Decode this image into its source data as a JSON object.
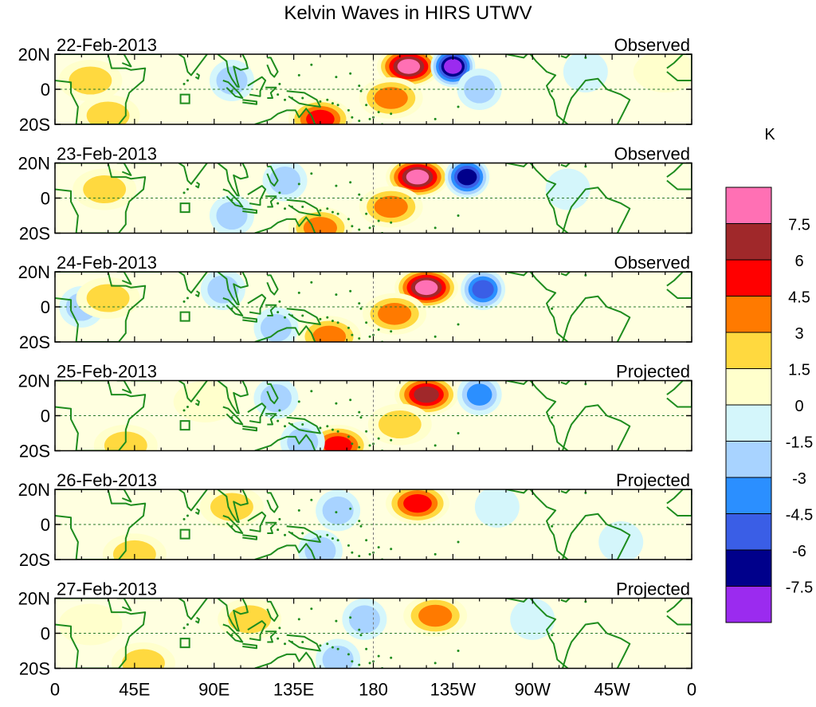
{
  "chart_data": {
    "type": "heatmap",
    "title": "Kelvin Waves in HIRS UTWV",
    "x_tick_labels": [
      "0",
      "45E",
      "90E",
      "135E",
      "180",
      "135W",
      "90W",
      "45W",
      "0"
    ],
    "y_tick_labels": [
      "20N",
      "0",
      "20S"
    ],
    "grid": false,
    "legend_placement": "right",
    "colorbar": {
      "unit": "K",
      "levels": [
        "7.5",
        "6",
        "4.5",
        "3",
        "1.5",
        "0",
        "-1.5",
        "-3",
        "-4.5",
        "-6",
        "-7.5"
      ],
      "colors": [
        "#ff70b4",
        "#a0282a",
        "#ff0000",
        "#ff7a00",
        "#ffd93f",
        "#ffffcc",
        "#d4f6fb",
        "#a8d3ff",
        "#2b8fff",
        "#3a5ee6",
        "#00008b",
        "#9b2bef"
      ]
    },
    "panels": [
      {
        "date": "22-Feb-2013",
        "status": "Observed",
        "features": [
          {
            "lon": 200,
            "lat": 13,
            "value": 8.0
          },
          {
            "lon": 225,
            "lat": 13,
            "value": -8.0
          },
          {
            "lon": 190,
            "lat": -5,
            "value": 4.0
          },
          {
            "lon": 150,
            "lat": -17,
            "value": 5.0
          },
          {
            "lon": 20,
            "lat": 5,
            "value": 3.0
          },
          {
            "lon": 30,
            "lat": -15,
            "value": 2.0
          },
          {
            "lon": 240,
            "lat": 0,
            "value": -2.5
          },
          {
            "lon": 100,
            "lat": 5,
            "value": -2.0
          },
          {
            "lon": 300,
            "lat": 10,
            "value": -1.5
          },
          {
            "lon": 345,
            "lat": 10,
            "value": 1.5
          }
        ]
      },
      {
        "date": "23-Feb-2013",
        "status": "Observed",
        "features": [
          {
            "lon": 205,
            "lat": 12,
            "value": 8.0
          },
          {
            "lon": 233,
            "lat": 12,
            "value": -6.5
          },
          {
            "lon": 190,
            "lat": -5,
            "value": 3.5
          },
          {
            "lon": 150,
            "lat": -17,
            "value": 4.5
          },
          {
            "lon": 28,
            "lat": 5,
            "value": 3.0
          },
          {
            "lon": 130,
            "lat": 10,
            "value": -2.5
          },
          {
            "lon": 100,
            "lat": -10,
            "value": -2.0
          },
          {
            "lon": 290,
            "lat": 5,
            "value": -1.5
          }
        ]
      },
      {
        "date": "24-Feb-2013",
        "status": "Observed",
        "features": [
          {
            "lon": 210,
            "lat": 11,
            "value": 8.0
          },
          {
            "lon": 242,
            "lat": 10,
            "value": -6.0
          },
          {
            "lon": 192,
            "lat": -4,
            "value": 3.5
          },
          {
            "lon": 155,
            "lat": -17,
            "value": 4.5
          },
          {
            "lon": 15,
            "lat": 0,
            "value": -2.0
          },
          {
            "lon": 30,
            "lat": 5,
            "value": 3.0
          },
          {
            "lon": 125,
            "lat": -12,
            "value": -3.0
          },
          {
            "lon": 95,
            "lat": 10,
            "value": -2.0
          }
        ]
      },
      {
        "date": "25-Feb-2013",
        "status": "Projected",
        "features": [
          {
            "lon": 210,
            "lat": 12,
            "value": 7.0
          },
          {
            "lon": 240,
            "lat": 12,
            "value": -3.5
          },
          {
            "lon": 160,
            "lat": -17,
            "value": 5.0
          },
          {
            "lon": 140,
            "lat": -15,
            "value": -3.0
          },
          {
            "lon": 40,
            "lat": -17,
            "value": 3.0
          },
          {
            "lon": 85,
            "lat": 8,
            "value": 1.5
          },
          {
            "lon": 195,
            "lat": -5,
            "value": 2.0
          },
          {
            "lon": 125,
            "lat": 10,
            "value": -2.5
          }
        ]
      },
      {
        "date": "26-Feb-2013",
        "status": "Projected",
        "features": [
          {
            "lon": 205,
            "lat": 12,
            "value": 5.0
          },
          {
            "lon": 100,
            "lat": 10,
            "value": 3.0
          },
          {
            "lon": 45,
            "lat": -17,
            "value": 2.5
          },
          {
            "lon": 150,
            "lat": -15,
            "value": -2.5
          },
          {
            "lon": 160,
            "lat": 8,
            "value": -2.0
          },
          {
            "lon": 250,
            "lat": 10,
            "value": -1.5
          },
          {
            "lon": 320,
            "lat": -10,
            "value": -1.5
          }
        ]
      },
      {
        "date": "27-Feb-2013",
        "status": "Projected",
        "features": [
          {
            "lon": 215,
            "lat": 10,
            "value": 3.5
          },
          {
            "lon": 110,
            "lat": 8,
            "value": 2.5
          },
          {
            "lon": 50,
            "lat": -17,
            "value": 2.0
          },
          {
            "lon": 160,
            "lat": -15,
            "value": -2.0
          },
          {
            "lon": 175,
            "lat": 8,
            "value": -2.0
          },
          {
            "lon": 270,
            "lat": 8,
            "value": -1.5
          },
          {
            "lon": 20,
            "lat": 5,
            "value": 1.5
          }
        ]
      }
    ]
  }
}
